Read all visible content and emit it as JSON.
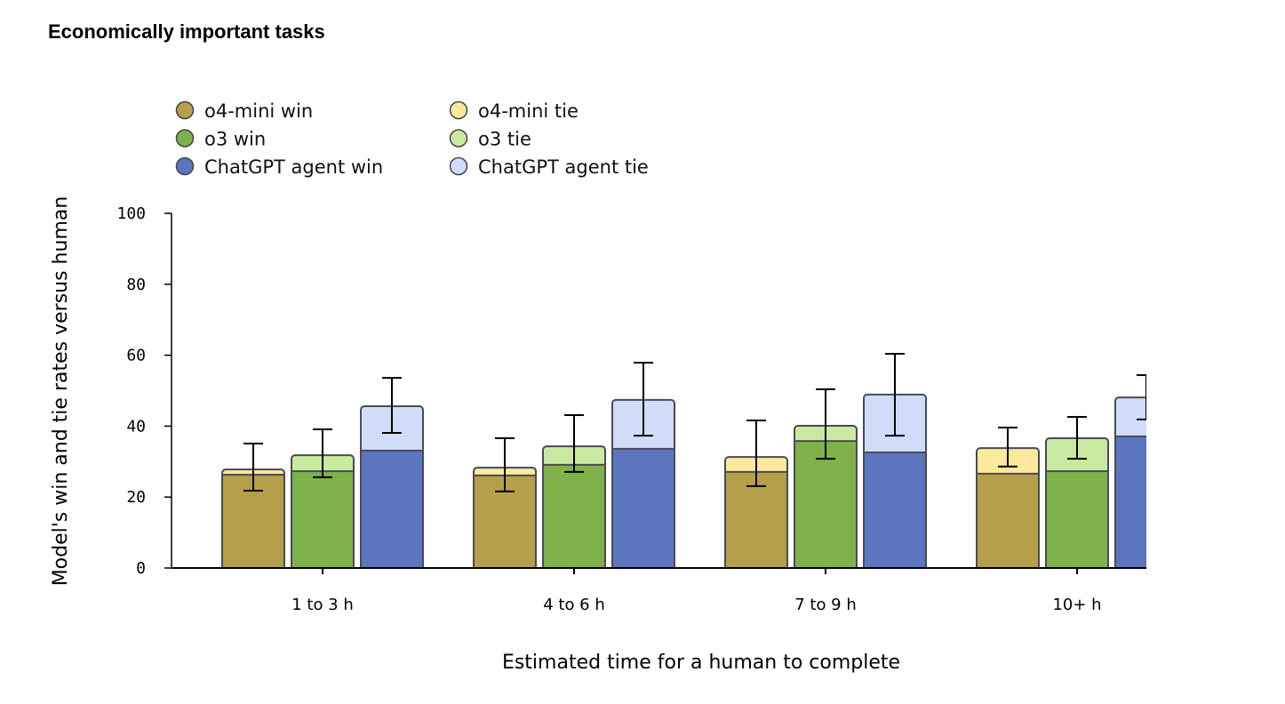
{
  "chart_data": {
    "type": "bar",
    "title": "Economically important tasks",
    "xlabel": "Estimated time for a human to complete",
    "ylabel": "Model's win and tie rates versus human",
    "ylim": [
      0,
      100
    ],
    "yticks": [
      "0",
      "20",
      "40",
      "60",
      "80",
      "100"
    ],
    "categories": [
      "1 to 3 h",
      "4 to 6 h",
      "7 to 9 h",
      "10+ h"
    ],
    "legend_placement": "top-left",
    "legend": [
      {
        "label": "o4-mini win",
        "color": "#b59f4a"
      },
      {
        "label": "o3 win",
        "color": "#7fb24b"
      },
      {
        "label": "ChatGPT agent win",
        "color": "#5b75bf"
      },
      {
        "label": "o4-mini tie",
        "color": "#fbe99c"
      },
      {
        "label": "o3 tie",
        "color": "#c9e9a0"
      },
      {
        "label": "ChatGPT agent tie",
        "color": "#d1ddf8"
      }
    ],
    "series": [
      {
        "name": "o4-mini",
        "win_color": "#b59f4a",
        "tie_color": "#fbe99c",
        "win": [
          26.3,
          26.1,
          27.1,
          26.6
        ],
        "win_plus_tie": [
          27.8,
          28.3,
          31.3,
          33.8
        ],
        "err_low": [
          21.8,
          21.6,
          23.1,
          28.6
        ],
        "err_high": [
          35.1,
          36.6,
          41.6,
          39.6
        ]
      },
      {
        "name": "o3",
        "win_color": "#7fb24b",
        "tie_color": "#c9e9a0",
        "win": [
          27.3,
          29.1,
          35.8,
          27.3
        ],
        "win_plus_tie": [
          31.8,
          34.3,
          40.1,
          36.6
        ],
        "err_low": [
          25.6,
          27.1,
          30.8,
          30.8
        ],
        "err_high": [
          39.1,
          43.1,
          50.4,
          42.6
        ]
      },
      {
        "name": "ChatGPT agent",
        "win_color": "#5b75bf",
        "tie_color": "#d1ddf8",
        "win": [
          33.1,
          33.6,
          32.6,
          37.1
        ],
        "win_plus_tie": [
          45.6,
          47.4,
          48.9,
          48.1
        ],
        "err_low": [
          38.1,
          37.3,
          37.3,
          41.9
        ],
        "err_high": [
          53.6,
          57.9,
          60.4,
          54.4
        ]
      }
    ]
  }
}
